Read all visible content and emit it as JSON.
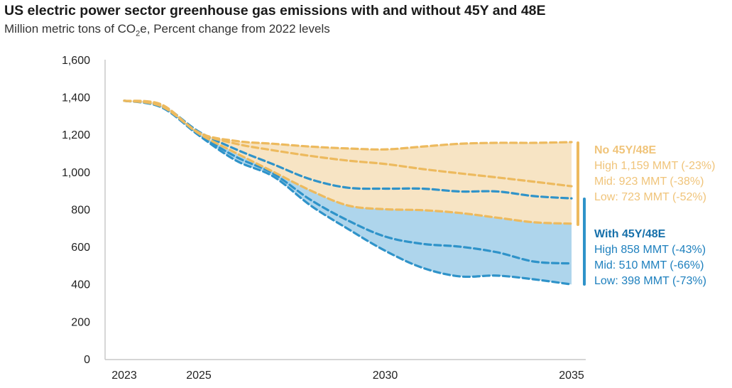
{
  "chart_data": {
    "type": "area",
    "title": "US electric power sector greenhouse gas emissions with and without 45Y and 48E",
    "subtitle": {
      "prefix": "Million metric tons of CO",
      "sub": "2",
      "suffix": "e, Percent change from 2022 levels"
    },
    "xlabel": "",
    "ylabel": "",
    "ylim": [
      0,
      1600
    ],
    "xlim": [
      2022.5,
      2035.5
    ],
    "yticks": [
      0,
      200,
      400,
      600,
      800,
      1000,
      1200,
      1400,
      1600
    ],
    "ytick_labels": [
      "0",
      "200",
      "400",
      "600",
      "800",
      "1,000",
      "1,200",
      "1,400",
      "1,600"
    ],
    "xticks": [
      2023,
      2025,
      2030,
      2035
    ],
    "xtick_labels": [
      "2023",
      "2025",
      "2030",
      "2035"
    ],
    "grid": false,
    "x": [
      2023,
      2024,
      2025,
      2026,
      2027,
      2028,
      2029,
      2030,
      2031,
      2032,
      2033,
      2034,
      2035
    ],
    "colors": {
      "no": "#EDBA5E",
      "no_fill": "#F7E4C4",
      "no_text": "#F0C47A",
      "with": "#2F93C9",
      "with_fill": "#AED5EC",
      "with_text": "#1E80BE",
      "with_heading": "#1670AA"
    },
    "series": [
      {
        "name": "No 45Y/48E High",
        "group": "no",
        "values": [
          1380,
          1360,
          1210,
          1165,
          1150,
          1135,
          1125,
          1120,
          1135,
          1150,
          1155,
          1155,
          1159
        ]
      },
      {
        "name": "No 45Y/48E Mid",
        "group": "no",
        "values": [
          1380,
          1355,
          1210,
          1150,
          1115,
          1085,
          1060,
          1042,
          1015,
          992,
          970,
          947,
          923
        ]
      },
      {
        "name": "No 45Y/48E Low",
        "group": "no",
        "values": [
          1380,
          1350,
          1205,
          1100,
          1000,
          900,
          820,
          800,
          795,
          780,
          755,
          730,
          723
        ]
      },
      {
        "name": "With 45Y/48E High",
        "group": "with",
        "values": [
          1380,
          1355,
          1215,
          1120,
          1040,
          960,
          915,
          910,
          910,
          895,
          895,
          870,
          858
        ]
      },
      {
        "name": "With 45Y/48E Mid",
        "group": "with",
        "values": [
          1380,
          1350,
          1200,
          1080,
          990,
          850,
          740,
          654,
          615,
          600,
          570,
          520,
          510
        ]
      },
      {
        "name": "With 45Y/48E Low",
        "group": "with",
        "values": [
          1380,
          1345,
          1195,
          1060,
          975,
          820,
          695,
          578,
          487,
          441,
          445,
          425,
          398
        ]
      }
    ],
    "legend": {
      "placement": "right",
      "no": {
        "heading": "No 45Y/48E",
        "lines": [
          "High 1,159 MMT (-23%)",
          "Mid: 923 MMT (-38%)",
          "Low: 723 MMT (-52%)"
        ]
      },
      "with": {
        "heading": "With 45Y/48E",
        "lines": [
          "High 858 MMT (-43%)",
          "Mid: 510 MMT (-66%)",
          "Low: 398 MMT (-73%)"
        ]
      }
    }
  }
}
